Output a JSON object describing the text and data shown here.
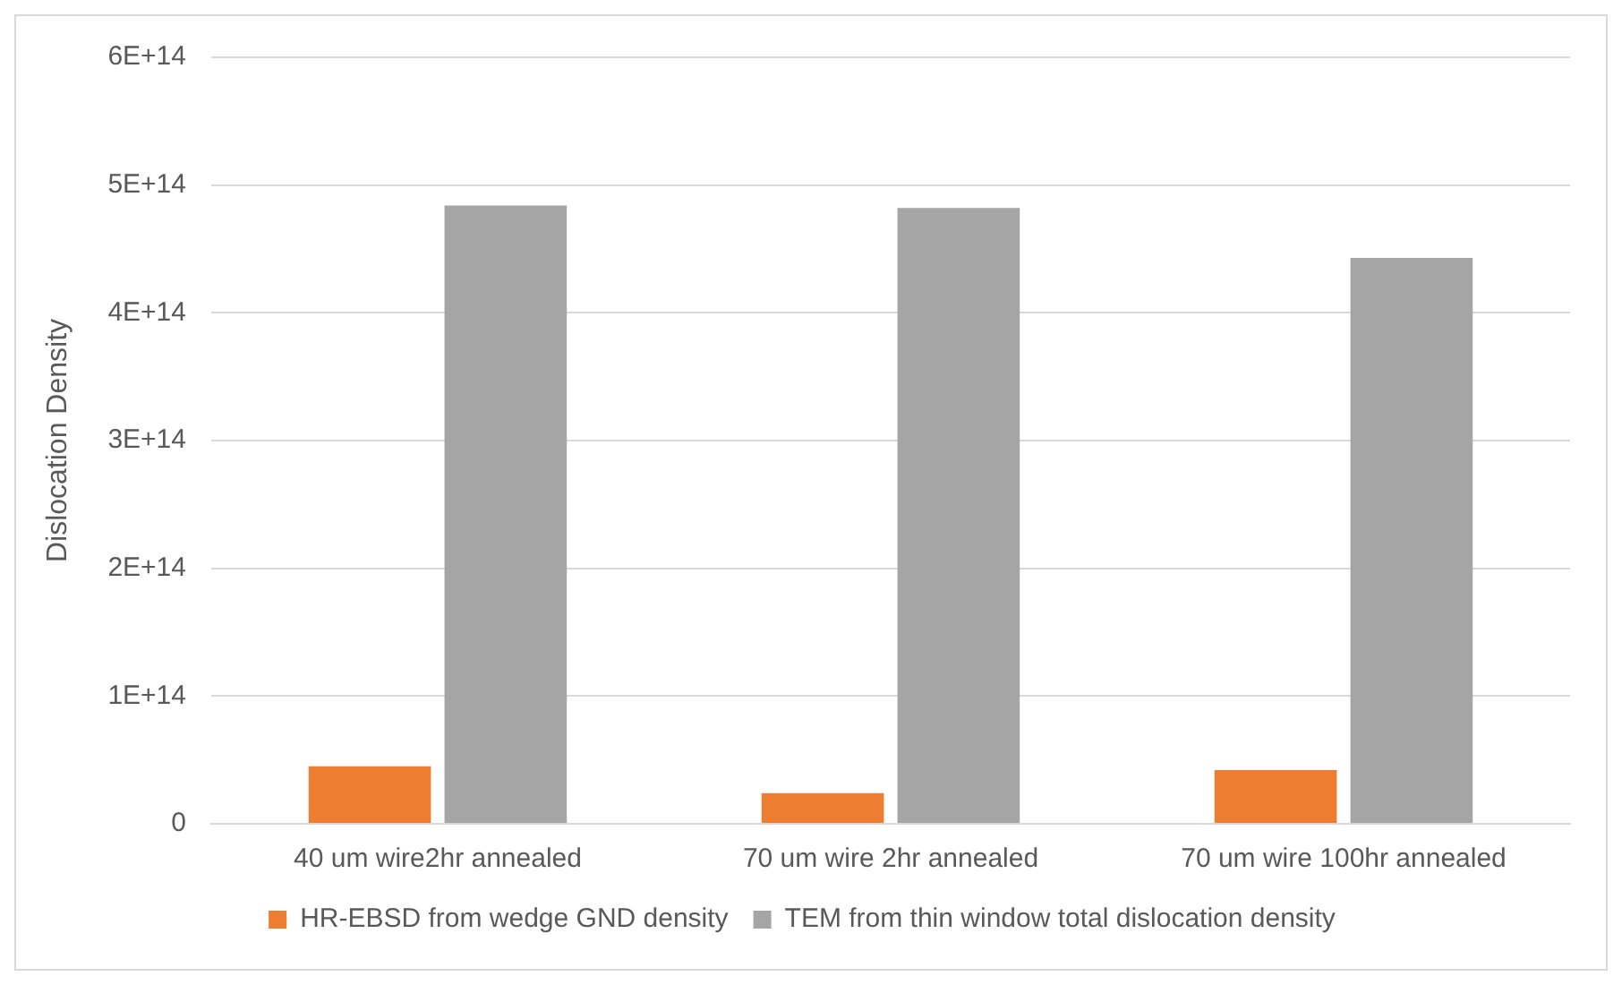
{
  "chart_data": {
    "type": "bar",
    "ylabel": "Dislocation Density",
    "categories": [
      "40 um wire2hr annealed",
      "70 um wire 2hr annealed",
      "70 um wire 100hr annealed"
    ],
    "series": [
      {
        "name": "HR-EBSD from wedge GND density",
        "color": "#ed7d31",
        "values": [
          45000000000000.0,
          24000000000000.0,
          42000000000000.0
        ]
      },
      {
        "name": "TEM from thin window total dislocation density",
        "color": "#a5a5a5",
        "values": [
          484000000000000.0,
          482000000000000.0,
          443000000000000.0
        ]
      }
    ],
    "ylim": [
      0,
      600000000000000.0
    ],
    "yticks": [
      0,
      {
        "value": 100000000000000.0,
        "label": "1E+14"
      },
      {
        "value": 200000000000000.0,
        "label": "2E+14"
      },
      {
        "value": 300000000000000.0,
        "label": "3E+14"
      },
      {
        "value": 400000000000000.0,
        "label": "4E+14"
      },
      {
        "value": 500000000000000.0,
        "label": "5E+14"
      },
      {
        "value": 600000000000000.0,
        "label": "6E+14"
      }
    ],
    "grid": "y",
    "legend": "bottom"
  }
}
